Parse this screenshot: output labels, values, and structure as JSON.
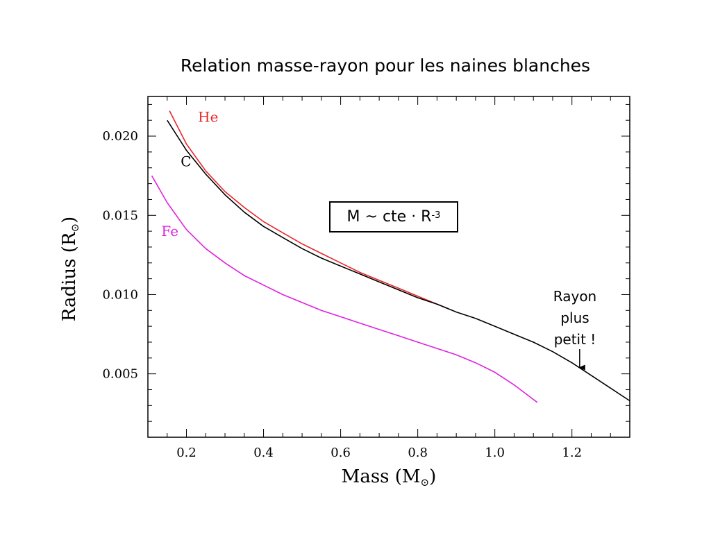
{
  "chart_data": {
    "type": "line",
    "title": "Relation masse-rayon pour les naines blanches",
    "xlabel": "Mass (M",
    "xlabel_sub": "⊙",
    "ylabel": "Radius (R",
    "ylabel_sub": "⊙",
    "xlim": [
      0.1,
      1.35
    ],
    "ylim": [
      0.001,
      0.0225
    ],
    "xticks": [
      0.2,
      0.4,
      0.6,
      0.8,
      1.0,
      1.2
    ],
    "xtick_labels": [
      "0.2",
      "0.4",
      "0.6",
      "0.8",
      "1.0",
      "1.2"
    ],
    "yticks": [
      0.005,
      0.01,
      0.015,
      0.02
    ],
    "ytick_labels": [
      "0.005",
      "0.010",
      "0.015",
      "0.020"
    ],
    "grid": false,
    "series": [
      {
        "name": "He",
        "color": "#e8262a",
        "label_at": [
          0.23,
          0.0209
        ],
        "x": [
          0.156,
          0.2,
          0.25,
          0.3,
          0.35,
          0.4,
          0.45,
          0.5,
          0.55,
          0.6,
          0.65,
          0.7,
          0.75,
          0.8,
          0.85,
          0.88
        ],
        "y": [
          0.0216,
          0.0195,
          0.0178,
          0.0165,
          0.0155,
          0.0146,
          0.0139,
          0.0132,
          0.0126,
          0.012,
          0.0114,
          0.0109,
          0.0104,
          0.0099,
          0.0094,
          0.0091
        ]
      },
      {
        "name": "C",
        "color": "#000000",
        "label_at": [
          0.185,
          0.0181
        ],
        "x": [
          0.15,
          0.2,
          0.25,
          0.3,
          0.35,
          0.4,
          0.45,
          0.5,
          0.55,
          0.6,
          0.65,
          0.7,
          0.75,
          0.8,
          0.85,
          0.9,
          0.95,
          1.0,
          1.05,
          1.1,
          1.15,
          1.2,
          1.25,
          1.3,
          1.35
        ],
        "y": [
          0.021,
          0.0191,
          0.0176,
          0.0163,
          0.0152,
          0.0143,
          0.0136,
          0.0129,
          0.0123,
          0.0118,
          0.0113,
          0.0108,
          0.0103,
          0.0098,
          0.0094,
          0.0089,
          0.0085,
          0.008,
          0.0075,
          0.007,
          0.0064,
          0.0057,
          0.0049,
          0.0041,
          0.0033
        ]
      },
      {
        "name": "Fe",
        "color": "#e020e0",
        "label_at": [
          0.135,
          0.0137
        ],
        "x": [
          0.11,
          0.15,
          0.2,
          0.25,
          0.3,
          0.35,
          0.4,
          0.45,
          0.5,
          0.55,
          0.6,
          0.65,
          0.7,
          0.75,
          0.8,
          0.85,
          0.9,
          0.95,
          1.0,
          1.05,
          1.11
        ],
        "y": [
          0.0175,
          0.0158,
          0.0141,
          0.0129,
          0.012,
          0.0112,
          0.0106,
          0.01,
          0.0095,
          0.009,
          0.0086,
          0.0082,
          0.0078,
          0.0074,
          0.007,
          0.0066,
          0.0062,
          0.0057,
          0.0051,
          0.0043,
          0.0032
        ]
      }
    ],
    "annotations": {
      "formula_main": "M ~ cte · R",
      "formula_sup": "-3",
      "note": "Rayon\nplus\npetit !",
      "arrow_target": [
        1.22,
        0.0054
      ]
    }
  }
}
